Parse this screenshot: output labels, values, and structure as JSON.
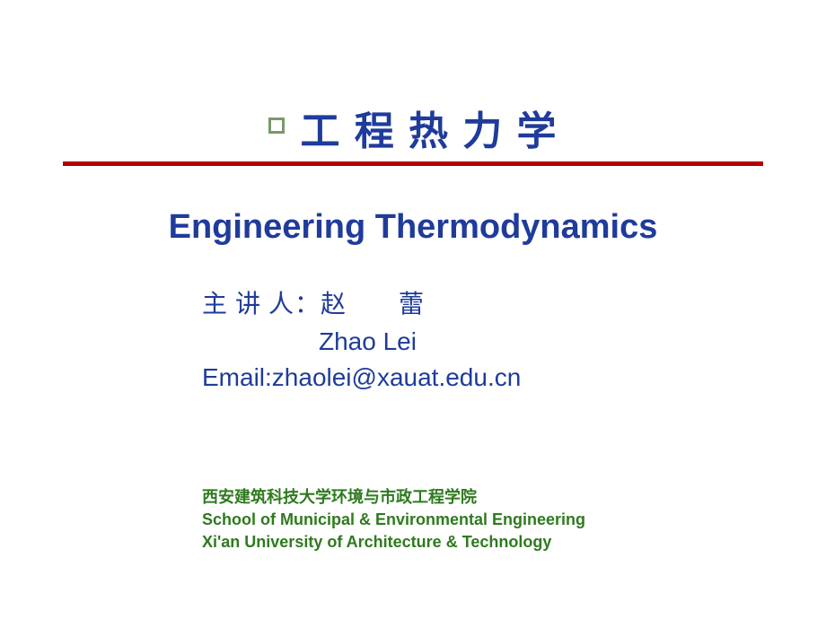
{
  "colors": {
    "title_blue": "#1f3b9b",
    "divider_red": "#b40000",
    "bullet_border": "#7a996b",
    "footer_green": "#2f7a1f",
    "background": "#ffffff"
  },
  "title": {
    "cn": "工 程 热 力 学",
    "en": "Engineering Thermodynamics",
    "cn_fontsize": 44,
    "en_fontsize": 38
  },
  "lecturer": {
    "line1": "主 讲 人：赵  蕾",
    "line2": "Zhao  Lei",
    "line3": "Email:zhaolei@xauat.edu.cn",
    "fontsize": 28,
    "color": "#1f3b9b"
  },
  "footer": {
    "cn": "西安建筑科技大学环境与市政工程学院",
    "en1": "School of Municipal & Environmental Engineering",
    "en2": "Xi'an University of Architecture & Technology",
    "fontsize": 18,
    "color": "#2f7a1f"
  }
}
